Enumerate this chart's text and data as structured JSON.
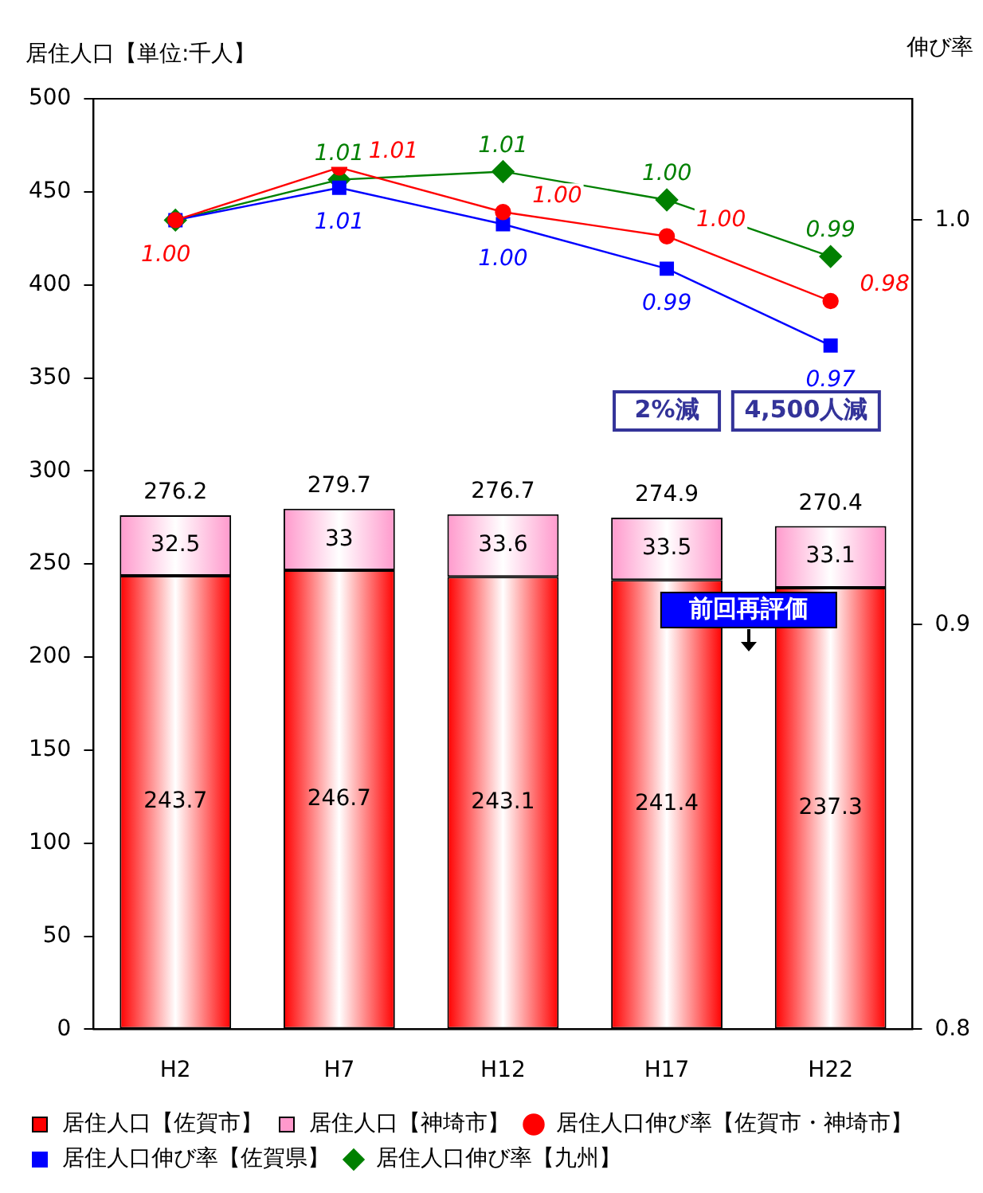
{
  "chart_data": {
    "type": "bar",
    "stacked": true,
    "ylabel": "居住人口【単位:千人】",
    "y2label": "伸び率",
    "categories": [
      "H2",
      "H7",
      "H12",
      "H17",
      "H22"
    ],
    "series": [
      {
        "name": "居住人口【佐賀市】",
        "color": "#ff0000",
        "values": [
          243.7,
          246.7,
          243.1,
          241.4,
          237.3
        ]
      },
      {
        "name": "居住人口【神埼市】",
        "color": "#ff99cc",
        "values": [
          32.5,
          33.0,
          33.6,
          33.5,
          33.1
        ]
      },
      {
        "name": "居住人口伸び率【佐賀市・神埼市】",
        "type": "line",
        "axis": "y2",
        "marker": "circle",
        "color": "#ff0000",
        "values": [
          1.0,
          1.013,
          1.002,
          0.996,
          0.98
        ],
        "value_labels": [
          "1.00",
          "1.01",
          "1.00",
          "1.00",
          "0.98"
        ]
      },
      {
        "name": "居住人口伸び率【佐賀県】",
        "type": "line",
        "axis": "y2",
        "marker": "square",
        "color": "#0000ff",
        "values": [
          1.0,
          1.008,
          0.999,
          0.988,
          0.969
        ],
        "value_labels": [
          null,
          "1.01",
          "1.00",
          "0.99",
          "0.97"
        ]
      },
      {
        "name": "居住人口伸び率【九州】",
        "type": "line",
        "axis": "y2",
        "marker": "diamond",
        "color": "#008000",
        "values": [
          1.0,
          1.01,
          1.012,
          1.005,
          0.991
        ],
        "value_labels": [
          null,
          "1.01",
          "1.01",
          "1.00",
          "0.99"
        ]
      }
    ],
    "totals": [
      "276.2",
      "279.7",
      "276.7",
      "274.9",
      "270.4"
    ],
    "data_labels": true,
    "ylim": [
      0,
      500
    ],
    "yticks": [
      0,
      50,
      100,
      150,
      200,
      250,
      300,
      350,
      400,
      450,
      500
    ],
    "y2lim": [
      0.8,
      1.03
    ],
    "y2ticks": [
      0.8,
      0.9,
      {
        "value": 1,
        "label": "1.0"
      }
    ],
    "grid": false,
    "legend": "bottom",
    "annotations": [
      "2%減",
      "4,500人減",
      "前回再評価"
    ]
  }
}
